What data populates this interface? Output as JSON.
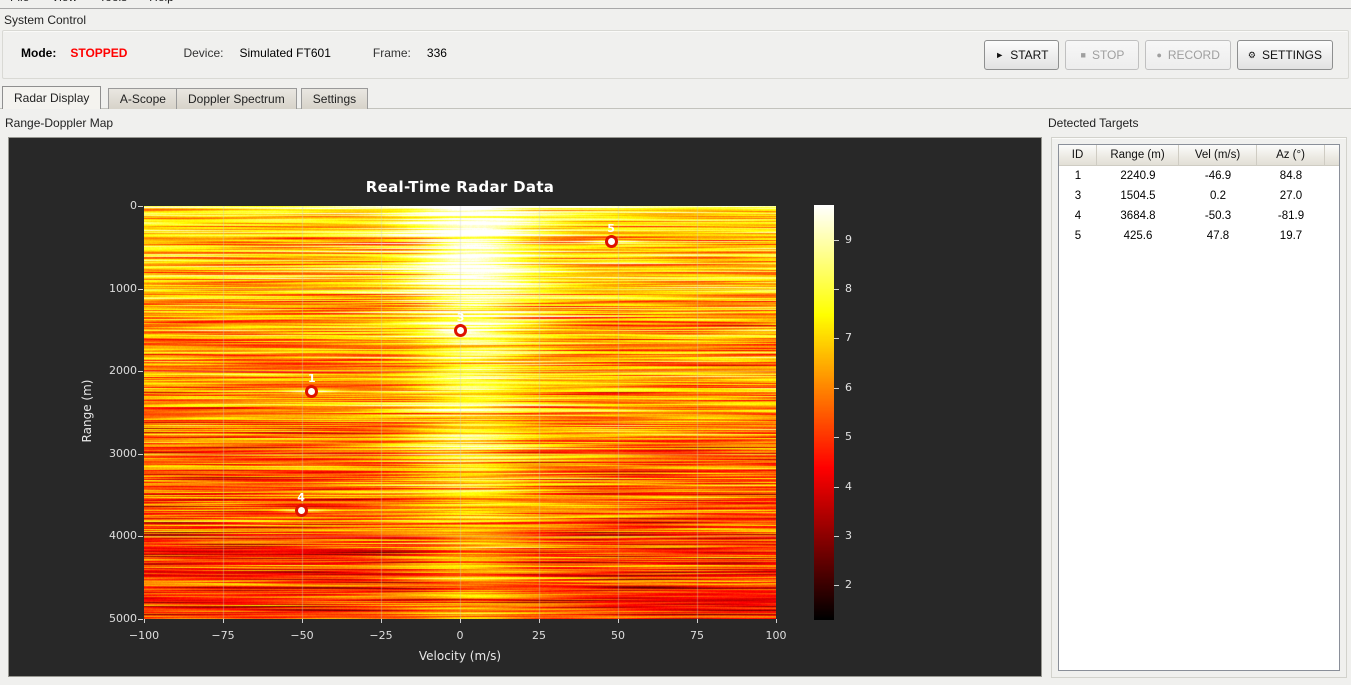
{
  "menu": {
    "items": [
      "File",
      "View",
      "Tools",
      "Help"
    ]
  },
  "system_control": {
    "title": "System Control",
    "mode_label": "Mode:",
    "mode_value": "STOPPED",
    "mode_color": "#ff0000",
    "device_label": "Device:",
    "device_value": "Simulated FT601",
    "frame_label": "Frame:",
    "frame_value": "336",
    "buttons": [
      {
        "name": "start",
        "icon": "play-icon",
        "glyph": "►",
        "label": "START",
        "enabled": true
      },
      {
        "name": "stop",
        "icon": "stop-icon",
        "glyph": "■",
        "label": "STOP",
        "enabled": false
      },
      {
        "name": "record",
        "icon": "record-icon",
        "glyph": "●",
        "label": "RECORD",
        "enabled": false
      },
      {
        "name": "settings",
        "icon": "gear-icon",
        "glyph": "⚙",
        "label": "SETTINGS",
        "enabled": true
      }
    ]
  },
  "tabs": [
    {
      "label": "Radar Display",
      "active": true
    },
    {
      "label": "A-Scope",
      "active": false
    },
    {
      "label": "Doppler Spectrum",
      "active": false
    },
    {
      "label": "Settings",
      "active": false
    }
  ],
  "radar_panel": {
    "title": "Range-Doppler Map"
  },
  "targets_panel": {
    "title": "Detected Targets",
    "columns": [
      "ID",
      "Range (m)",
      "Vel (m/s)",
      "Az (°)"
    ],
    "rows": [
      [
        "1",
        "2240.9",
        "-46.9",
        "84.8"
      ],
      [
        "3",
        "1504.5",
        "0.2",
        "27.0"
      ],
      [
        "4",
        "3684.8",
        "-50.3",
        "-81.9"
      ],
      [
        "5",
        "425.6",
        "47.8",
        "19.7"
      ]
    ]
  },
  "chart_data": {
    "type": "heatmap",
    "title": "Real-Time Radar Data",
    "xlabel": "Velocity (m/s)",
    "ylabel": "Range (m)",
    "xlim": [
      -100,
      100
    ],
    "ylim": [
      0,
      5000
    ],
    "x_ticks": [
      -100,
      -75,
      -50,
      -25,
      0,
      25,
      50,
      75,
      100
    ],
    "y_ticks": [
      0,
      1000,
      2000,
      3000,
      4000,
      5000
    ],
    "colormap": "hot",
    "colorbar_ticks": [
      2,
      3,
      4,
      5,
      6,
      7,
      8,
      9
    ],
    "colorbar_range": [
      1.3,
      9.7
    ],
    "grid": true,
    "clutter_band": {
      "center_velocity": 3,
      "width_velocity": 18,
      "intensity_top": 10,
      "intensity_bottom": 8
    },
    "background_intensity": {
      "top": 7.0,
      "bottom": 4.8
    },
    "targets": [
      {
        "id": "1",
        "range_m": 2240.9,
        "vel_ms": -46.9,
        "az_deg": 84.8
      },
      {
        "id": "3",
        "range_m": 1504.5,
        "vel_ms": 0.2,
        "az_deg": 27.0
      },
      {
        "id": "4",
        "range_m": 3684.8,
        "vel_ms": -50.3,
        "az_deg": -81.9
      },
      {
        "id": "5",
        "range_m": 425.6,
        "vel_ms": 47.8,
        "az_deg": 19.7
      }
    ]
  }
}
